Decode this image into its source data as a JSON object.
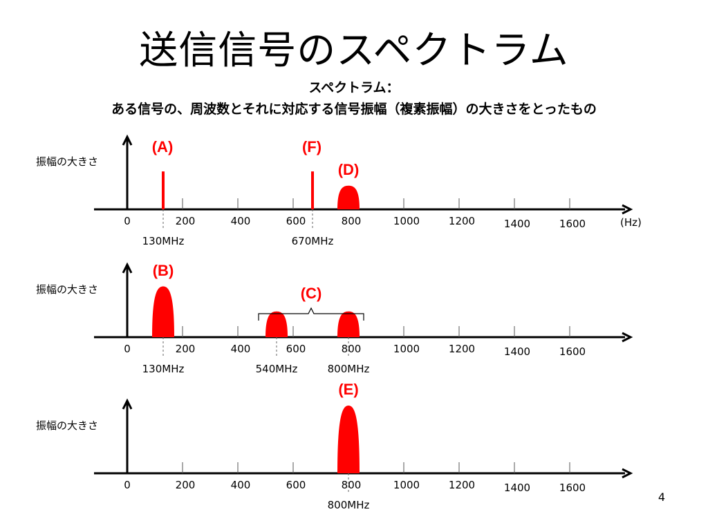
{
  "slide": {
    "title": "送信信号のスペクトラム",
    "subtitle_1": "スペクトラム：",
    "subtitle_2": "ある信号の、周波数とそれに対応する信号振幅（複素振幅）の大きさをとったもの",
    "page_number": "4"
  },
  "colors": {
    "signal": "#ff0000",
    "axis": "#000000"
  },
  "chart_data": [
    {
      "type": "spectrum",
      "ylabel": "振幅の大きさ",
      "unit_label": "(Hz)",
      "x_ticks": [
        "0",
        "200",
        "400",
        "600",
        "800",
        "1000",
        "1200",
        "1400",
        "1600"
      ],
      "xlim": [
        0,
        1800
      ],
      "signals": [
        {
          "label": "(A)",
          "shape": "line",
          "center": 130,
          "level": 0.8
        },
        {
          "label": "(F)",
          "shape": "line",
          "center": 670,
          "level": 0.8
        },
        {
          "label": "(D)",
          "shape": "hump",
          "center": 800,
          "width": 80,
          "level": 0.35
        }
      ],
      "annotations": [
        {
          "text": "130MHz",
          "x": 130
        },
        {
          "text": "670MHz",
          "x": 670
        }
      ]
    },
    {
      "type": "spectrum",
      "ylabel": "振幅の大きさ",
      "unit_label": "",
      "x_ticks": [
        "0",
        "200",
        "400",
        "600",
        "800",
        "1000",
        "1200",
        "1400",
        "1600"
      ],
      "xlim": [
        0,
        1800
      ],
      "signals": [
        {
          "label": "(B)",
          "shape": "hump",
          "center": 130,
          "width": 80,
          "level": 0.75
        },
        {
          "label": "",
          "shape": "hump",
          "center": 540,
          "width": 80,
          "level": 0.38
        },
        {
          "label": "",
          "shape": "hump",
          "center": 800,
          "width": 80,
          "level": 0.38
        }
      ],
      "group_label": {
        "text": "(C)",
        "from": 500,
        "to": 840
      },
      "annotations": [
        {
          "text": "130MHz",
          "x": 130
        },
        {
          "text": "540MHz",
          "x": 540
        },
        {
          "text": "800MHz",
          "x": 800
        }
      ]
    },
    {
      "type": "spectrum",
      "ylabel": "振幅の大きさ",
      "unit_label": "",
      "x_ticks": [
        "0",
        "200",
        "400",
        "600",
        "800",
        "1000",
        "1200",
        "1400",
        "1600"
      ],
      "xlim": [
        0,
        1800
      ],
      "signals": [
        {
          "label": "(E)",
          "shape": "hump",
          "center": 800,
          "width": 80,
          "level": 1.0
        }
      ],
      "annotations": [
        {
          "text": "800MHz",
          "x": 800
        }
      ]
    }
  ]
}
